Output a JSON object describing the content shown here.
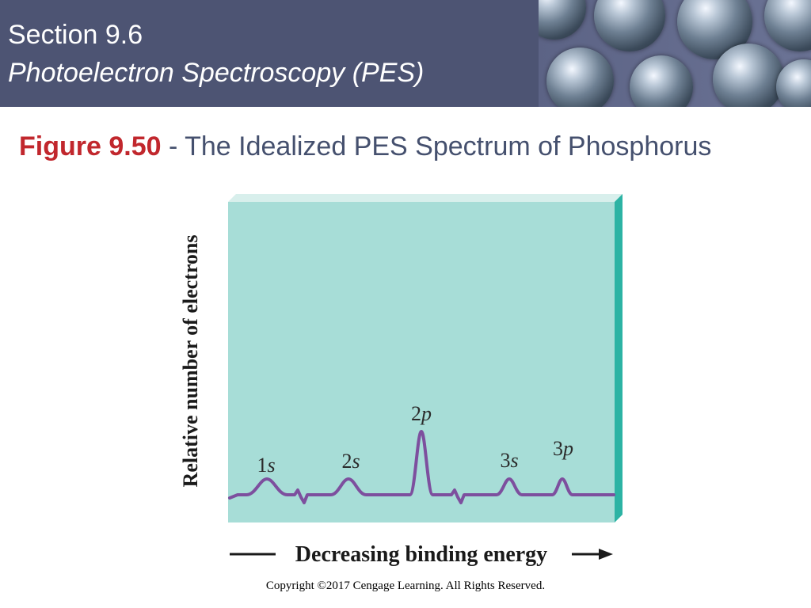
{
  "header": {
    "section": "Section 9.6",
    "subtitle": "Photoelectron Spectroscopy (PES)"
  },
  "figure": {
    "number": "Figure 9.50",
    "title": " - The Idealized PES Spectrum of Phosphorus"
  },
  "chart_data": {
    "type": "line",
    "title": "",
    "xlabel": "Decreasing binding energy",
    "ylabel": "Relative number of electrons",
    "x_direction": "decreasing binding energy (left to right)",
    "y_relative": true,
    "grid": false,
    "series": [
      {
        "peaks": [
          {
            "label": "1s",
            "relative_height": 1
          },
          {
            "label": "2s",
            "relative_height": 1
          },
          {
            "label": "2p",
            "relative_height": 3
          },
          {
            "label": "3s",
            "relative_height": 1
          },
          {
            "label": "3p",
            "relative_height": 1
          }
        ],
        "axis_breaks": 2
      }
    ],
    "colors": {
      "plot_background": "#a7ddd7",
      "plot_side": "#2cb3a4",
      "line": "#7d4f9e"
    }
  },
  "footer": {
    "copyright": "Copyright ©2017 Cengage Learning. All Rights Reserved."
  }
}
